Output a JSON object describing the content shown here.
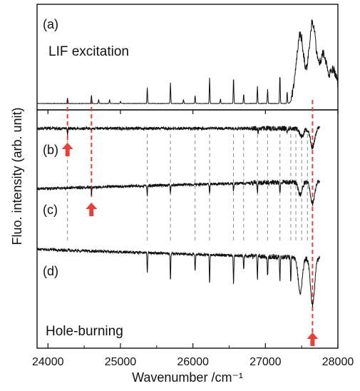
{
  "chart_data": {
    "type": "line",
    "xlabel": "Wavenumber /cm⁻¹",
    "ylabel": "Fluo. intensity (arb. unit)",
    "xlim": [
      23850,
      28000
    ],
    "xticks": [
      24000,
      25000,
      26000,
      27000,
      28000
    ],
    "upper_panel": {
      "panel_label": "(a)",
      "title": "LIF excitation",
      "series": [
        {
          "label": "(a)",
          "baseline": 0.02,
          "peaks": [
            {
              "x": 24270,
              "h": 0.07
            },
            {
              "x": 24600,
              "h": 0.11
            },
            {
              "x": 24700,
              "h": 0.05
            },
            {
              "x": 24850,
              "h": 0.05
            },
            {
              "x": 25000,
              "h": 0.03
            },
            {
              "x": 25370,
              "h": 0.2
            },
            {
              "x": 25690,
              "h": 0.26
            },
            {
              "x": 25870,
              "h": 0.05
            },
            {
              "x": 26030,
              "h": 0.1
            },
            {
              "x": 26230,
              "h": 0.32
            },
            {
              "x": 26380,
              "h": 0.06
            },
            {
              "x": 26560,
              "h": 0.33
            },
            {
              "x": 26700,
              "h": 0.12
            },
            {
              "x": 26890,
              "h": 0.22
            },
            {
              "x": 27030,
              "h": 0.18
            },
            {
              "x": 27200,
              "h": 0.36
            },
            {
              "x": 27300,
              "h": 0.15
            },
            {
              "x": 27480,
              "h": 0.8
            },
            {
              "x": 27650,
              "h": 0.95
            },
            {
              "x": 27800,
              "h": 0.55
            },
            {
              "x": 27940,
              "h": 0.35
            }
          ]
        }
      ]
    },
    "lower_panel": {
      "annotation": "Hole-burning",
      "series": [
        {
          "label": "(b)",
          "x_range": [
            23850,
            27750
          ],
          "dips": [
            {
              "x": 24270,
              "depth": 0.1
            },
            {
              "x": 26900,
              "depth": 0.08
            },
            {
              "x": 27300,
              "depth": 0.1
            },
            {
              "x": 27500,
              "depth": 0.12
            },
            {
              "x": 27650,
              "depth": 0.3
            }
          ]
        },
        {
          "label": "(c)",
          "x_range": [
            23850,
            27750
          ],
          "dips": [
            {
              "x": 24600,
              "depth": 0.1
            },
            {
              "x": 25370,
              "depth": 0.16
            },
            {
              "x": 25690,
              "depth": 0.12
            },
            {
              "x": 26230,
              "depth": 0.14
            },
            {
              "x": 26560,
              "depth": 0.12
            },
            {
              "x": 26890,
              "depth": 0.14
            },
            {
              "x": 27200,
              "depth": 0.18
            },
            {
              "x": 27480,
              "depth": 0.2
            },
            {
              "x": 27650,
              "depth": 0.35
            }
          ]
        },
        {
          "label": "(d)",
          "x_range": [
            23850,
            27750
          ],
          "dips": [
            {
              "x": 25370,
              "depth": 0.26
            },
            {
              "x": 25690,
              "depth": 0.34
            },
            {
              "x": 26030,
              "depth": 0.22
            },
            {
              "x": 26230,
              "depth": 0.36
            },
            {
              "x": 26560,
              "depth": 0.36
            },
            {
              "x": 26700,
              "depth": 0.18
            },
            {
              "x": 26890,
              "depth": 0.3
            },
            {
              "x": 27030,
              "depth": 0.26
            },
            {
              "x": 27200,
              "depth": 0.3
            },
            {
              "x": 27350,
              "depth": 0.32
            },
            {
              "x": 27480,
              "depth": 0.45
            },
            {
              "x": 27650,
              "depth": 0.6
            }
          ]
        }
      ]
    },
    "gray_marker_positions": [
      24270,
      25370,
      25690,
      26030,
      26230,
      26560,
      26700,
      26890,
      27030,
      27200,
      27350,
      27420,
      27500,
      27580
    ],
    "red_markers": [
      {
        "x": 24270,
        "arrow_below": "(b)"
      },
      {
        "x": 24600,
        "arrow_below": "(c)"
      },
      {
        "x": 27650,
        "arrow_below": "(d)"
      }
    ],
    "colors": {
      "trace": "#111111",
      "red_marker": "#e8413a",
      "gray_marker": "#8a8a8a"
    }
  }
}
